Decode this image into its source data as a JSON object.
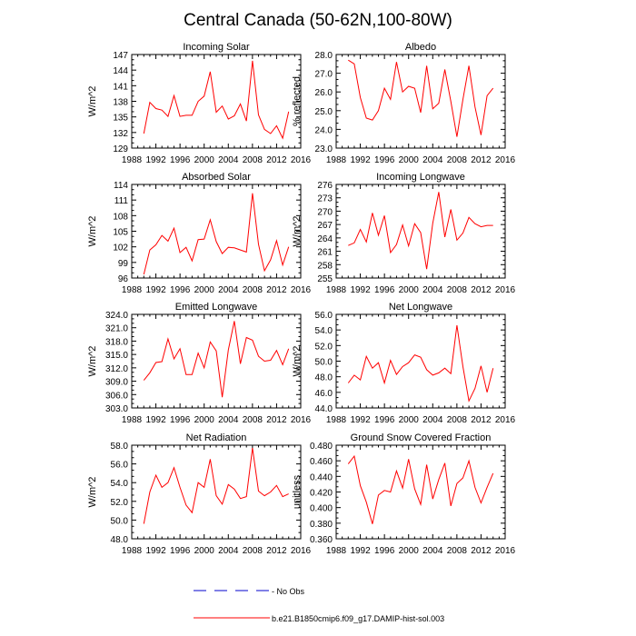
{
  "figure": {
    "title": "Central Canada (50-62N,100-80W)",
    "legend": [
      {
        "label": "- No Obs",
        "color": "#0000cc",
        "style": "dashed"
      },
      {
        "label": "b.e21.B1850cmip6.f09_g17.DAMIP-hist-sol.003",
        "color": "#ff0000",
        "style": "solid"
      }
    ]
  },
  "chart_data": [
    {
      "type": "line",
      "title": "Incoming Solar",
      "ylabel": "W/m^2",
      "xlim": [
        1988,
        2016
      ],
      "xticks": [
        "1988",
        "1992",
        "1996",
        "2000",
        "2004",
        "2008",
        "2012",
        "2016"
      ],
      "ylim": [
        129,
        147
      ],
      "yticks": [
        "129",
        "132",
        "135",
        "138",
        "141",
        "144",
        "147"
      ],
      "series": [
        {
          "color": "#ff0000",
          "x": [
            1990,
            1991,
            1992,
            1993,
            1994,
            1995,
            1996,
            1997,
            1998,
            1999,
            2000,
            2001,
            2002,
            2003,
            2004,
            2005,
            2006,
            2007,
            2008,
            2009,
            2010,
            2011,
            2012,
            2013,
            2014
          ],
          "y": [
            131.8,
            137.8,
            136.6,
            136.3,
            135.1,
            139.1,
            135.1,
            135.3,
            135.3,
            138.0,
            139.0,
            143.7,
            135.9,
            137.1,
            134.6,
            135.2,
            137.5,
            134.2,
            145.8,
            135.4,
            132.6,
            131.8,
            133.3,
            130.9,
            136.0
          ]
        }
      ]
    },
    {
      "type": "line",
      "title": "Albedo",
      "ylabel": "% reflected",
      "xlim": [
        1988,
        2016
      ],
      "xticks": [
        "1988",
        "1992",
        "1996",
        "2000",
        "2004",
        "2008",
        "2012",
        "2016"
      ],
      "ylim": [
        23.0,
        28.0
      ],
      "yticks": [
        "23.0",
        "24.0",
        "25.0",
        "26.0",
        "27.0",
        "28.0"
      ],
      "series": [
        {
          "color": "#ff0000",
          "x": [
            1990,
            1991,
            1992,
            1993,
            1994,
            1995,
            1996,
            1997,
            1998,
            1999,
            2000,
            2001,
            2002,
            2003,
            2004,
            2005,
            2006,
            2007,
            2008,
            2009,
            2010,
            2011,
            2012,
            2013,
            2014
          ],
          "y": [
            27.7,
            27.5,
            25.7,
            24.6,
            24.5,
            25.0,
            26.2,
            25.6,
            27.6,
            26.0,
            26.3,
            26.2,
            24.9,
            27.4,
            25.1,
            25.4,
            27.2,
            25.5,
            23.6,
            25.6,
            27.4,
            25.2,
            23.7,
            25.8,
            26.2
          ]
        }
      ]
    },
    {
      "type": "line",
      "title": "Absorbed Solar",
      "ylabel": "W/m^2",
      "xlim": [
        1988,
        2016
      ],
      "xticks": [
        "1988",
        "1992",
        "1996",
        "2000",
        "2004",
        "2008",
        "2012",
        "2016"
      ],
      "ylim": [
        96,
        114
      ],
      "yticks": [
        "96",
        "99",
        "102",
        "105",
        "108",
        "111",
        "114"
      ],
      "series": [
        {
          "color": "#ff0000",
          "x": [
            1990,
            1991,
            1992,
            1993,
            1994,
            1995,
            1996,
            1997,
            1998,
            1999,
            2000,
            2001,
            2002,
            2003,
            2004,
            2005,
            2006,
            2007,
            2008,
            2009,
            2010,
            2011,
            2012,
            2013,
            2014
          ],
          "y": [
            96.7,
            101.4,
            102.4,
            104.2,
            103.1,
            105.6,
            100.9,
            101.9,
            99.3,
            103.4,
            103.5,
            107.2,
            103.0,
            100.7,
            101.9,
            101.8,
            101.4,
            101.0,
            112.3,
            102.5,
            97.4,
            99.5,
            103.2,
            98.5,
            102.0
          ]
        }
      ]
    },
    {
      "type": "line",
      "title": "Incoming Longwave",
      "ylabel": "W/m^2",
      "xlim": [
        1988,
        2016
      ],
      "xticks": [
        "1988",
        "1992",
        "1996",
        "2000",
        "2004",
        "2008",
        "2012",
        "2016"
      ],
      "ylim": [
        255,
        276
      ],
      "yticks": [
        "255",
        "258",
        "261",
        "264",
        "267",
        "270",
        "273",
        "276"
      ],
      "series": [
        {
          "color": "#ff0000",
          "x": [
            1990,
            1991,
            1992,
            1993,
            1994,
            1995,
            1996,
            1997,
            1998,
            1999,
            2000,
            2001,
            2002,
            2003,
            2004,
            2005,
            2006,
            2007,
            2008,
            2009,
            2010,
            2011,
            2012,
            2013,
            2014
          ],
          "y": [
            262.3,
            262.9,
            265.9,
            263.1,
            269.6,
            264.6,
            269.0,
            260.7,
            262.5,
            266.9,
            262.2,
            267.2,
            265.2,
            257.0,
            267.3,
            274.3,
            264.2,
            270.4,
            263.5,
            265.1,
            268.6,
            267.2,
            266.5,
            266.8,
            266.8
          ]
        }
      ]
    },
    {
      "type": "line",
      "title": "Emitted Longwave",
      "ylabel": "W/m^2",
      "xlim": [
        1988,
        2016
      ],
      "xticks": [
        "1988",
        "1992",
        "1996",
        "2000",
        "2004",
        "2008",
        "2012",
        "2016"
      ],
      "ylim": [
        303.0,
        324.0
      ],
      "yticks": [
        "303.0",
        "306.0",
        "309.0",
        "312.0",
        "315.0",
        "318.0",
        "321.0",
        "324.0"
      ],
      "series": [
        {
          "color": "#ff0000",
          "x": [
            1990,
            1991,
            1992,
            1993,
            1994,
            1995,
            1996,
            1997,
            1998,
            1999,
            2000,
            2001,
            2002,
            2003,
            2004,
            2005,
            2006,
            2007,
            2008,
            2009,
            2010,
            2011,
            2012,
            2013,
            2014
          ],
          "y": [
            309.2,
            310.9,
            313.2,
            313.4,
            318.5,
            314.0,
            316.3,
            310.5,
            310.5,
            315.3,
            312.0,
            317.8,
            315.8,
            305.4,
            316.0,
            322.5,
            312.9,
            318.8,
            318.2,
            314.6,
            313.5,
            313.7,
            315.9,
            312.7,
            316.3
          ]
        }
      ]
    },
    {
      "type": "line",
      "title": "Net Longwave",
      "ylabel": "W/m^2",
      "xlim": [
        1988,
        2016
      ],
      "xticks": [
        "1988",
        "1992",
        "1996",
        "2000",
        "2004",
        "2008",
        "2012",
        "2016"
      ],
      "ylim": [
        44.0,
        56.0
      ],
      "yticks": [
        "44.0",
        "46.0",
        "48.0",
        "50.0",
        "52.0",
        "54.0",
        "56.0"
      ],
      "series": [
        {
          "color": "#ff0000",
          "x": [
            1990,
            1991,
            1992,
            1993,
            1994,
            1995,
            1996,
            1997,
            1998,
            1999,
            2000,
            2001,
            2002,
            2003,
            2004,
            2005,
            2006,
            2007,
            2008,
            2009,
            2010,
            2011,
            2012,
            2013,
            2014
          ],
          "y": [
            47.2,
            48.2,
            47.6,
            50.6,
            49.1,
            49.8,
            47.2,
            50.1,
            48.3,
            49.3,
            49.8,
            50.8,
            50.5,
            48.9,
            48.2,
            48.5,
            49.1,
            48.4,
            54.6,
            49.3,
            44.9,
            46.5,
            49.4,
            46.0,
            49.1
          ]
        }
      ]
    },
    {
      "type": "line",
      "title": "Net Radiation",
      "ylabel": "W/m^2",
      "xlim": [
        1988,
        2016
      ],
      "xticks": [
        "1988",
        "1992",
        "1996",
        "2000",
        "2004",
        "2008",
        "2012",
        "2016"
      ],
      "ylim": [
        48.0,
        58.0
      ],
      "yticks": [
        "48.0",
        "50.0",
        "52.0",
        "54.0",
        "56.0",
        "58.0"
      ],
      "series": [
        {
          "color": "#ff0000",
          "x": [
            1990,
            1991,
            1992,
            1993,
            1994,
            1995,
            1996,
            1997,
            1998,
            1999,
            2000,
            2001,
            2002,
            2003,
            2004,
            2005,
            2006,
            2007,
            2008,
            2009,
            2010,
            2011,
            2012,
            2013,
            2014
          ],
          "y": [
            49.6,
            53.0,
            54.8,
            53.5,
            54.0,
            55.6,
            53.5,
            51.6,
            50.8,
            54.0,
            53.5,
            56.5,
            52.6,
            51.7,
            53.8,
            53.3,
            52.3,
            52.5,
            57.7,
            53.1,
            52.6,
            53.0,
            53.7,
            52.5,
            52.8
          ]
        }
      ]
    },
    {
      "type": "line",
      "title": "Ground Snow Covered Fraction",
      "ylabel": "unitless",
      "xlim": [
        1988,
        2016
      ],
      "xticks": [
        "1988",
        "1992",
        "1996",
        "2000",
        "2004",
        "2008",
        "2012",
        "2016"
      ],
      "ylim": [
        0.36,
        0.48
      ],
      "yticks": [
        "0.360",
        "0.380",
        "0.400",
        "0.420",
        "0.440",
        "0.460",
        "0.480"
      ],
      "series": [
        {
          "color": "#ff0000",
          "x": [
            1990,
            1991,
            1992,
            1993,
            1994,
            1995,
            1996,
            1997,
            1998,
            1999,
            2000,
            2001,
            2002,
            2003,
            2004,
            2005,
            2006,
            2007,
            2008,
            2009,
            2010,
            2011,
            2012,
            2013,
            2014
          ],
          "y": [
            0.456,
            0.466,
            0.428,
            0.407,
            0.379,
            0.416,
            0.422,
            0.42,
            0.447,
            0.425,
            0.462,
            0.424,
            0.404,
            0.455,
            0.411,
            0.436,
            0.457,
            0.402,
            0.431,
            0.438,
            0.46,
            0.426,
            0.406,
            0.426,
            0.444
          ]
        }
      ]
    }
  ]
}
